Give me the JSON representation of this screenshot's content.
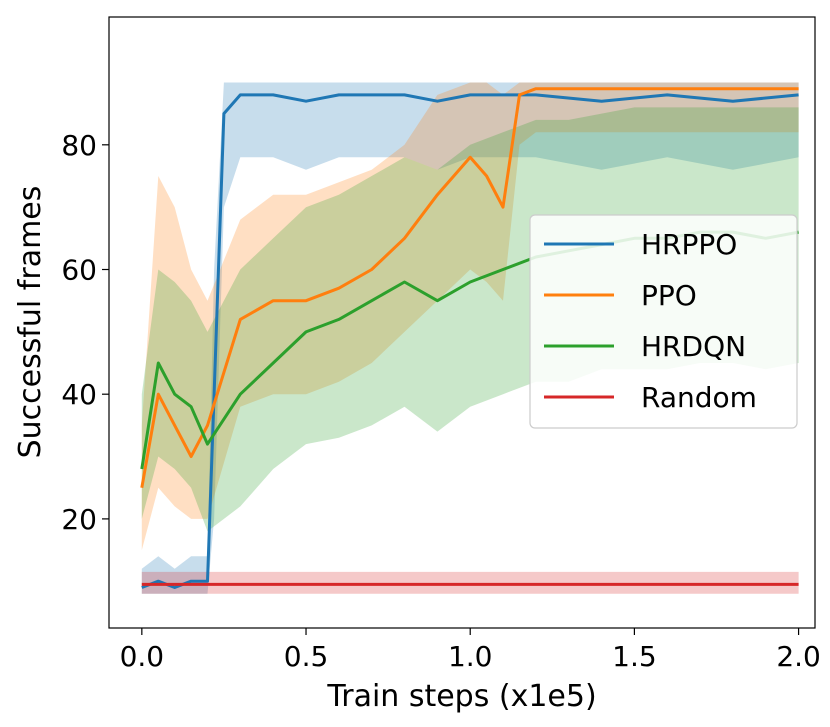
{
  "chart_data": {
    "type": "line",
    "xlabel": "Train steps (x1e5)",
    "ylabel": "Successful frames",
    "xlim": [
      -0.1,
      2.05
    ],
    "ylim": [
      2.5,
      100.5
    ],
    "xticks": [
      0.0,
      0.5,
      1.0,
      1.5,
      2.0
    ],
    "xtick_labels": [
      "0.0",
      "0.5",
      "1.0",
      "1.5",
      "2.0"
    ],
    "yticks": [
      20,
      40,
      60,
      80
    ],
    "ytick_labels": [
      "20",
      "40",
      "60",
      "80"
    ],
    "grid": false,
    "legend_position": "center-right",
    "series": [
      {
        "name": "HRPPO",
        "color": "#1f77b4",
        "x": [
          0.0,
          0.05,
          0.1,
          0.15,
          0.2,
          0.22,
          0.25,
          0.3,
          0.4,
          0.5,
          0.6,
          0.7,
          0.8,
          0.9,
          1.0,
          1.2,
          1.4,
          1.6,
          1.8,
          2.0
        ],
        "values": [
          9,
          10,
          9,
          10,
          10,
          40,
          85,
          88,
          88,
          87,
          88,
          88,
          88,
          87,
          88,
          88,
          87,
          88,
          87,
          88
        ],
        "band_low": [
          8,
          8,
          8,
          8,
          8,
          20,
          70,
          78,
          78,
          76,
          78,
          78,
          78,
          76,
          78,
          78,
          76,
          78,
          76,
          78
        ],
        "band_high": [
          12,
          14,
          12,
          14,
          14,
          60,
          90,
          90,
          90,
          90,
          90,
          90,
          90,
          90,
          90,
          90,
          90,
          90,
          90,
          90
        ]
      },
      {
        "name": "PPO",
        "color": "#ff7f0e",
        "x": [
          0.0,
          0.05,
          0.1,
          0.15,
          0.2,
          0.3,
          0.4,
          0.5,
          0.6,
          0.7,
          0.8,
          0.9,
          1.0,
          1.05,
          1.1,
          1.15,
          1.2,
          1.4,
          1.6,
          1.8,
          2.0
        ],
        "values": [
          25,
          40,
          35,
          30,
          35,
          52,
          55,
          55,
          57,
          60,
          65,
          72,
          78,
          75,
          70,
          88,
          89,
          89,
          89,
          89,
          89
        ],
        "band_low": [
          15,
          25,
          22,
          20,
          20,
          38,
          40,
          40,
          42,
          45,
          50,
          55,
          60,
          58,
          55,
          80,
          82,
          82,
          82,
          82,
          82
        ],
        "band_high": [
          35,
          75,
          70,
          60,
          55,
          68,
          72,
          72,
          74,
          76,
          80,
          88,
          90,
          90,
          88,
          90,
          90,
          90,
          90,
          90,
          90
        ]
      },
      {
        "name": "HRDQN",
        "color": "#2ca02c",
        "x": [
          0.0,
          0.05,
          0.1,
          0.15,
          0.2,
          0.3,
          0.4,
          0.5,
          0.6,
          0.7,
          0.8,
          0.9,
          1.0,
          1.1,
          1.2,
          1.3,
          1.4,
          1.5,
          1.6,
          1.7,
          1.8,
          1.9,
          2.0
        ],
        "values": [
          28,
          45,
          40,
          38,
          32,
          40,
          45,
          50,
          52,
          55,
          58,
          55,
          58,
          60,
          62,
          63,
          64,
          65,
          65,
          66,
          66,
          65,
          66
        ],
        "band_low": [
          20,
          30,
          28,
          25,
          18,
          22,
          28,
          32,
          33,
          35,
          38,
          34,
          38,
          40,
          42,
          42,
          44,
          44,
          44,
          45,
          45,
          44,
          45
        ],
        "band_high": [
          40,
          60,
          58,
          55,
          50,
          60,
          65,
          70,
          72,
          75,
          78,
          76,
          80,
          82,
          84,
          84,
          85,
          86,
          86,
          86,
          86,
          86,
          86
        ]
      },
      {
        "name": "Random",
        "color": "#d62728",
        "x": [
          0.0,
          0.25,
          0.5,
          0.75,
          1.0,
          1.25,
          1.5,
          1.75,
          2.0
        ],
        "values": [
          9.5,
          9.5,
          9.5,
          9.5,
          9.5,
          9.5,
          9.5,
          9.5,
          9.5
        ],
        "band_low": [
          8,
          8,
          8,
          8,
          8,
          8,
          8,
          8,
          8
        ],
        "band_high": [
          11.5,
          11.5,
          11.5,
          11.5,
          11.5,
          11.5,
          11.5,
          11.5,
          11.5
        ]
      }
    ]
  }
}
